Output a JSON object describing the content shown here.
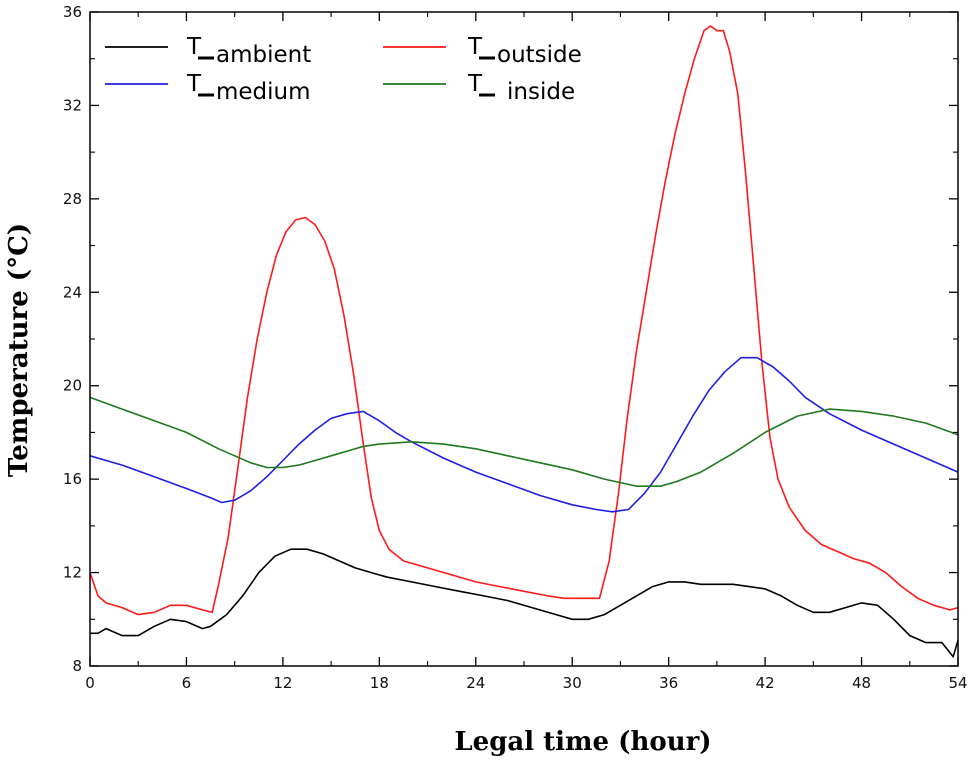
{
  "chart_data": {
    "type": "line",
    "title": "",
    "xlabel": "Legal time (hour)",
    "ylabel": "Temperature (°C)",
    "xlim": [
      0,
      54
    ],
    "ylim": [
      8,
      36
    ],
    "xticks": [
      0,
      6,
      12,
      18,
      24,
      30,
      36,
      42,
      48,
      54
    ],
    "yticks": [
      8,
      12,
      16,
      20,
      24,
      28,
      32,
      36
    ],
    "xtick_labels": [
      "0",
      "6",
      "12",
      "18",
      "24",
      "30",
      "36",
      "42",
      "48",
      "54"
    ],
    "ytick_labels": [
      "8",
      "12",
      "16",
      "20",
      "24",
      "28",
      "32",
      "36"
    ],
    "legend_position": "top",
    "series": [
      {
        "name": "T_ambient",
        "legend_label": "ambient",
        "color": "#000000",
        "points": [
          [
            0,
            9.4
          ],
          [
            0.5,
            9.4
          ],
          [
            1,
            9.6
          ],
          [
            2,
            9.3
          ],
          [
            3,
            9.3
          ],
          [
            4,
            9.7
          ],
          [
            5,
            10
          ],
          [
            6,
            9.9
          ],
          [
            7,
            9.6
          ],
          [
            7.5,
            9.7
          ],
          [
            8.5,
            10.2
          ],
          [
            9.5,
            11
          ],
          [
            10.5,
            12
          ],
          [
            11.5,
            12.7
          ],
          [
            12.5,
            13
          ],
          [
            13.5,
            13
          ],
          [
            14.5,
            12.8
          ],
          [
            15.5,
            12.5
          ],
          [
            16.5,
            12.2
          ],
          [
            17.5,
            12
          ],
          [
            18.5,
            11.8
          ],
          [
            20,
            11.6
          ],
          [
            21.5,
            11.4
          ],
          [
            23,
            11.2
          ],
          [
            24.5,
            11
          ],
          [
            26,
            10.8
          ],
          [
            27.5,
            10.5
          ],
          [
            29,
            10.2
          ],
          [
            30,
            10
          ],
          [
            31,
            10
          ],
          [
            32,
            10.2
          ],
          [
            33,
            10.6
          ],
          [
            34,
            11
          ],
          [
            35,
            11.4
          ],
          [
            36,
            11.6
          ],
          [
            37,
            11.6
          ],
          [
            38,
            11.5
          ],
          [
            39,
            11.5
          ],
          [
            40,
            11.5
          ],
          [
            41,
            11.4
          ],
          [
            42,
            11.3
          ],
          [
            43,
            11
          ],
          [
            44,
            10.6
          ],
          [
            45,
            10.3
          ],
          [
            46,
            10.3
          ],
          [
            47,
            10.5
          ],
          [
            48,
            10.7
          ],
          [
            49,
            10.6
          ],
          [
            50,
            10
          ],
          [
            51,
            9.3
          ],
          [
            52,
            9
          ],
          [
            53,
            9
          ],
          [
            53.7,
            8.4
          ],
          [
            54,
            9.1
          ]
        ]
      },
      {
        "name": "T_outside",
        "legend_label": "outside",
        "color": "#ff1a1a",
        "points": [
          [
            0,
            12
          ],
          [
            0.5,
            11
          ],
          [
            1,
            10.7
          ],
          [
            2,
            10.5
          ],
          [
            3,
            10.2
          ],
          [
            4,
            10.3
          ],
          [
            5,
            10.6
          ],
          [
            6,
            10.6
          ],
          [
            7,
            10.4
          ],
          [
            7.6,
            10.3
          ],
          [
            8,
            11.5
          ],
          [
            8.6,
            13.5
          ],
          [
            9.2,
            16.5
          ],
          [
            9.8,
            19.5
          ],
          [
            10.4,
            22
          ],
          [
            11,
            24
          ],
          [
            11.6,
            25.6
          ],
          [
            12.2,
            26.6
          ],
          [
            12.8,
            27.1
          ],
          [
            13.4,
            27.2
          ],
          [
            14,
            26.9
          ],
          [
            14.6,
            26.2
          ],
          [
            15.2,
            25
          ],
          [
            15.8,
            23
          ],
          [
            16.4,
            20.5
          ],
          [
            17,
            17.5
          ],
          [
            17.5,
            15.2
          ],
          [
            18,
            13.8
          ],
          [
            18.6,
            13
          ],
          [
            19.5,
            12.5
          ],
          [
            21,
            12.2
          ],
          [
            22.5,
            11.9
          ],
          [
            24,
            11.6
          ],
          [
            25.5,
            11.4
          ],
          [
            27,
            11.2
          ],
          [
            28.5,
            11
          ],
          [
            29.5,
            10.9
          ],
          [
            31.7,
            10.9
          ],
          [
            32.3,
            12.5
          ],
          [
            32.9,
            15.5
          ],
          [
            33.4,
            18.5
          ],
          [
            34,
            21.5
          ],
          [
            34.6,
            24
          ],
          [
            35.2,
            26.5
          ],
          [
            35.8,
            28.8
          ],
          [
            36.4,
            30.8
          ],
          [
            37,
            32.5
          ],
          [
            37.6,
            34
          ],
          [
            38.2,
            35.2
          ],
          [
            38.6,
            35.4
          ],
          [
            39,
            35.2
          ],
          [
            39.4,
            35.2
          ],
          [
            39.8,
            34.3
          ],
          [
            40.3,
            32.5
          ],
          [
            40.8,
            29
          ],
          [
            41.3,
            25
          ],
          [
            41.8,
            21
          ],
          [
            42.3,
            17.8
          ],
          [
            42.8,
            16
          ],
          [
            43.5,
            14.8
          ],
          [
            44.5,
            13.8
          ],
          [
            45.5,
            13.2
          ],
          [
            46.5,
            12.9
          ],
          [
            47.5,
            12.6
          ],
          [
            48.5,
            12.4
          ],
          [
            49.5,
            12
          ],
          [
            50.5,
            11.4
          ],
          [
            51.5,
            10.9
          ],
          [
            52.5,
            10.6
          ],
          [
            53.5,
            10.4
          ],
          [
            54,
            10.5
          ]
        ]
      },
      {
        "name": "T_medium",
        "legend_label": "medium",
        "color": "#1f1fe6",
        "points": [
          [
            0,
            17
          ],
          [
            2,
            16.6
          ],
          [
            4,
            16.1
          ],
          [
            6,
            15.6
          ],
          [
            7.5,
            15.2
          ],
          [
            8.2,
            15
          ],
          [
            9,
            15.1
          ],
          [
            10,
            15.5
          ],
          [
            11,
            16.1
          ],
          [
            12,
            16.8
          ],
          [
            13,
            17.5
          ],
          [
            14,
            18.1
          ],
          [
            15,
            18.6
          ],
          [
            16,
            18.8
          ],
          [
            17,
            18.9
          ],
          [
            18,
            18.5
          ],
          [
            19,
            18
          ],
          [
            20,
            17.6
          ],
          [
            22,
            16.9
          ],
          [
            24,
            16.3
          ],
          [
            26,
            15.8
          ],
          [
            28,
            15.3
          ],
          [
            30,
            14.9
          ],
          [
            31.5,
            14.7
          ],
          [
            32.5,
            14.6
          ],
          [
            33.5,
            14.7
          ],
          [
            34.5,
            15.4
          ],
          [
            35.5,
            16.3
          ],
          [
            36.5,
            17.5
          ],
          [
            37.5,
            18.7
          ],
          [
            38.5,
            19.8
          ],
          [
            39.5,
            20.6
          ],
          [
            40.5,
            21.2
          ],
          [
            41.5,
            21.2
          ],
          [
            42.5,
            20.8
          ],
          [
            43.5,
            20.2
          ],
          [
            44.5,
            19.5
          ],
          [
            46,
            18.8
          ],
          [
            48,
            18.1
          ],
          [
            50,
            17.5
          ],
          [
            52,
            16.9
          ],
          [
            54,
            16.3
          ]
        ]
      },
      {
        "name": "T_inside",
        "legend_label": "inside",
        "color": "#1f7a1f",
        "points": [
          [
            0,
            19.5
          ],
          [
            2,
            19
          ],
          [
            4,
            18.5
          ],
          [
            6,
            18
          ],
          [
            8,
            17.3
          ],
          [
            9,
            17
          ],
          [
            10,
            16.7
          ],
          [
            11,
            16.5
          ],
          [
            12,
            16.5
          ],
          [
            13,
            16.6
          ],
          [
            14,
            16.8
          ],
          [
            15,
            17
          ],
          [
            16,
            17.2
          ],
          [
            17,
            17.4
          ],
          [
            18,
            17.5
          ],
          [
            20,
            17.6
          ],
          [
            22,
            17.5
          ],
          [
            24,
            17.3
          ],
          [
            26,
            17
          ],
          [
            28,
            16.7
          ],
          [
            30,
            16.4
          ],
          [
            32,
            16
          ],
          [
            34,
            15.7
          ],
          [
            35.5,
            15.7
          ],
          [
            36.5,
            15.9
          ],
          [
            38,
            16.3
          ],
          [
            40,
            17.1
          ],
          [
            42,
            18
          ],
          [
            44,
            18.7
          ],
          [
            46,
            19
          ],
          [
            48,
            18.9
          ],
          [
            50,
            18.7
          ],
          [
            52,
            18.4
          ],
          [
            54,
            17.9
          ]
        ]
      }
    ]
  }
}
